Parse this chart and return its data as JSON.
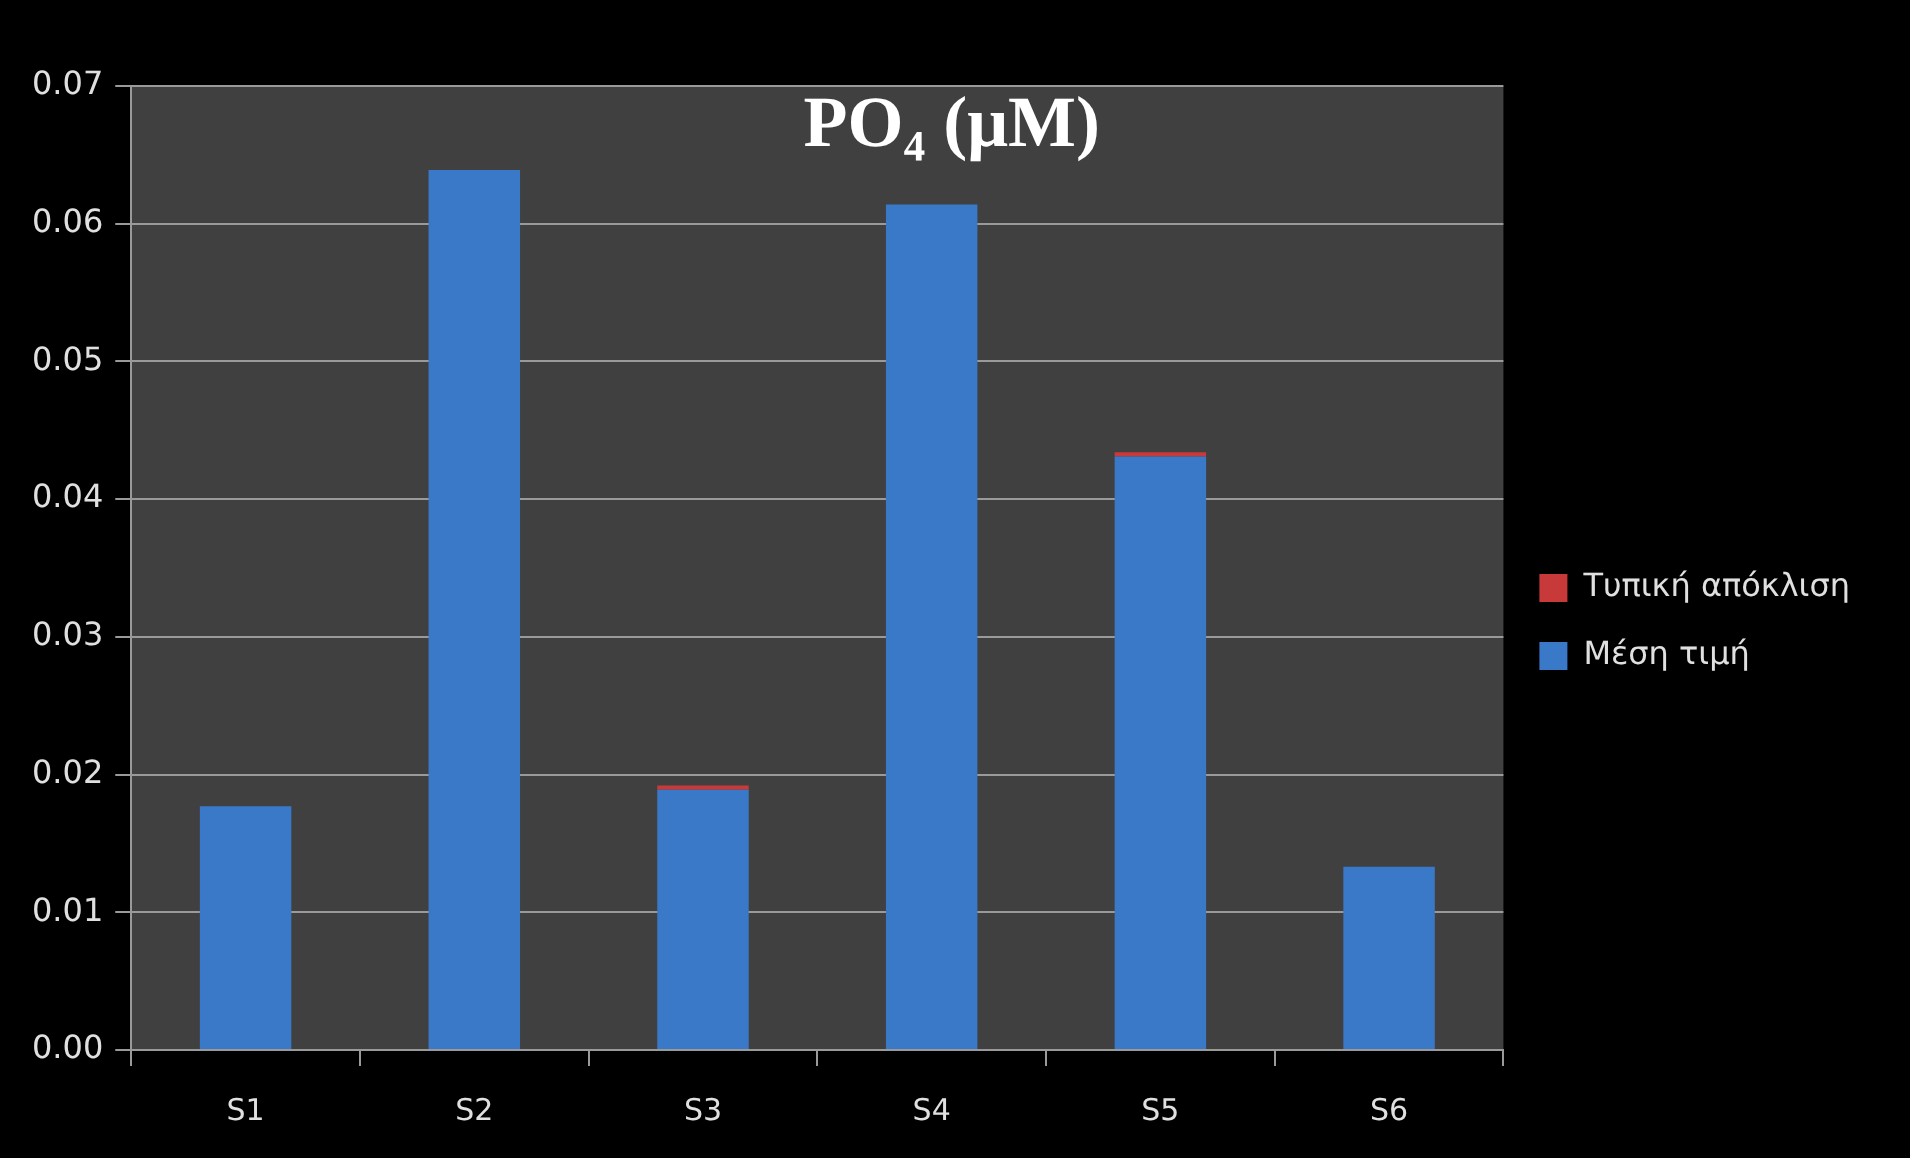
{
  "chart_data": {
    "type": "bar",
    "title": "PO₄ (μM)",
    "stacked": true,
    "categories": [
      "S1",
      "S2",
      "S3",
      "S4",
      "S5",
      "S6"
    ],
    "series": [
      {
        "name": "Μέση τιμή",
        "color": "#3a78c8",
        "values": [
          0.0177,
          0.0639,
          0.0189,
          0.0614,
          0.0431,
          0.0133
        ]
      },
      {
        "name": "Τυπική απόκλιση",
        "color": "#c83a3a",
        "values": [
          0,
          0,
          0.0003,
          0,
          0.0003,
          0
        ]
      }
    ],
    "ylim": [
      0,
      0.07
    ],
    "yticks": [
      {
        "value": 0,
        "label": "0.00"
      },
      0.01,
      0.02,
      0.03,
      0.04,
      0.05,
      0.06,
      0.07
    ],
    "grid": "y",
    "legend": "right"
  }
}
